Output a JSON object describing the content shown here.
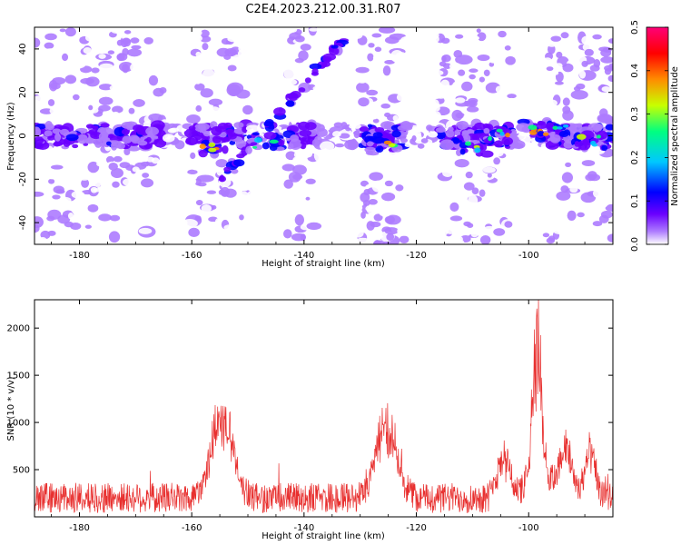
{
  "figure": {
    "title": "C2E4.2023.212.00.31.R07"
  },
  "chart_data": [
    {
      "id": "spectrogram",
      "type": "heatmap",
      "title": "C2E4.2023.212.00.31.R07",
      "xlabel": "Height of straight line (km)",
      "ylabel": "Frequency (Hz)",
      "xlim": [
        -188,
        -85
      ],
      "ylim": [
        -50,
        50
      ],
      "xticks": [
        -180,
        -160,
        -140,
        -120,
        -100
      ],
      "yticks": [
        -40,
        -20,
        0,
        20,
        40
      ],
      "colorbar": {
        "label": "Normalized spectral amplitude",
        "range": [
          0.0,
          0.5
        ],
        "ticks": [
          0.0,
          0.1,
          0.2,
          0.3,
          0.4,
          0.5
        ],
        "colormap": [
          "#ffffff",
          "#ad7bff",
          "#6a00ff",
          "#0000ff",
          "#00c8ff",
          "#00ff80",
          "#c8ff00",
          "#ff8c00",
          "#ff0000",
          "#ff0078"
        ]
      },
      "features": {
        "horizontal_band": {
          "freq_hz": 0,
          "half_width_hz": 5,
          "x_range": [
            -188,
            -85
          ]
        },
        "diagonal_trace": {
          "start": [
            -155,
            -20
          ],
          "end": [
            -133,
            44
          ]
        },
        "bright_clusters": [
          {
            "x": -157,
            "y": -5,
            "amp": 0.45
          },
          {
            "x": -147,
            "y": -3,
            "amp": 0.3
          },
          {
            "x": -126,
            "y": -3,
            "amp": 0.45
          },
          {
            "x": -110,
            "y": -5,
            "amp": 0.35
          },
          {
            "x": -105,
            "y": 0,
            "amp": 0.4
          },
          {
            "x": -98,
            "y": 3,
            "amp": 0.45
          },
          {
            "x": -95,
            "y": 2,
            "amp": 0.4
          },
          {
            "x": -89,
            "y": -2,
            "amp": 0.35
          }
        ],
        "low_activity_columns_km": [
          [
            -165,
            -160
          ],
          [
            -150,
            -143
          ],
          [
            -138,
            -130
          ],
          [
            -122,
            -116
          ],
          [
            -103,
            -97
          ]
        ]
      }
    },
    {
      "id": "snr",
      "type": "line",
      "xlabel": "Height of straight line (km)",
      "ylabel": "SNR (10 * v/v)",
      "xlim": [
        -188,
        -85
      ],
      "ylim": [
        0,
        2300
      ],
      "xticks": [
        -180,
        -160,
        -140,
        -120,
        -100
      ],
      "yticks": [
        500,
        1000,
        1500,
        2000
      ],
      "color": "#e8302f",
      "baseline": 200,
      "noise_amplitude": 160,
      "peaks": [
        {
          "x": -154.5,
          "value": 1250,
          "width_km": 2.5
        },
        {
          "x": -125.5,
          "value": 1180,
          "width_km": 2.5
        },
        {
          "x": -98.5,
          "value": 2300,
          "width_km": 1.2
        },
        {
          "x": -104.5,
          "value": 850,
          "width_km": 1.5
        },
        {
          "x": -93.5,
          "value": 860,
          "width_km": 1.5
        },
        {
          "x": -89,
          "value": 800,
          "width_km": 1.2
        }
      ],
      "elevated_ranges": [
        {
          "from": -160,
          "to": -150,
          "level": 650
        },
        {
          "from": -130,
          "to": -120,
          "level": 550
        },
        {
          "from": -106,
          "to": -86,
          "level": 550
        }
      ]
    }
  ]
}
